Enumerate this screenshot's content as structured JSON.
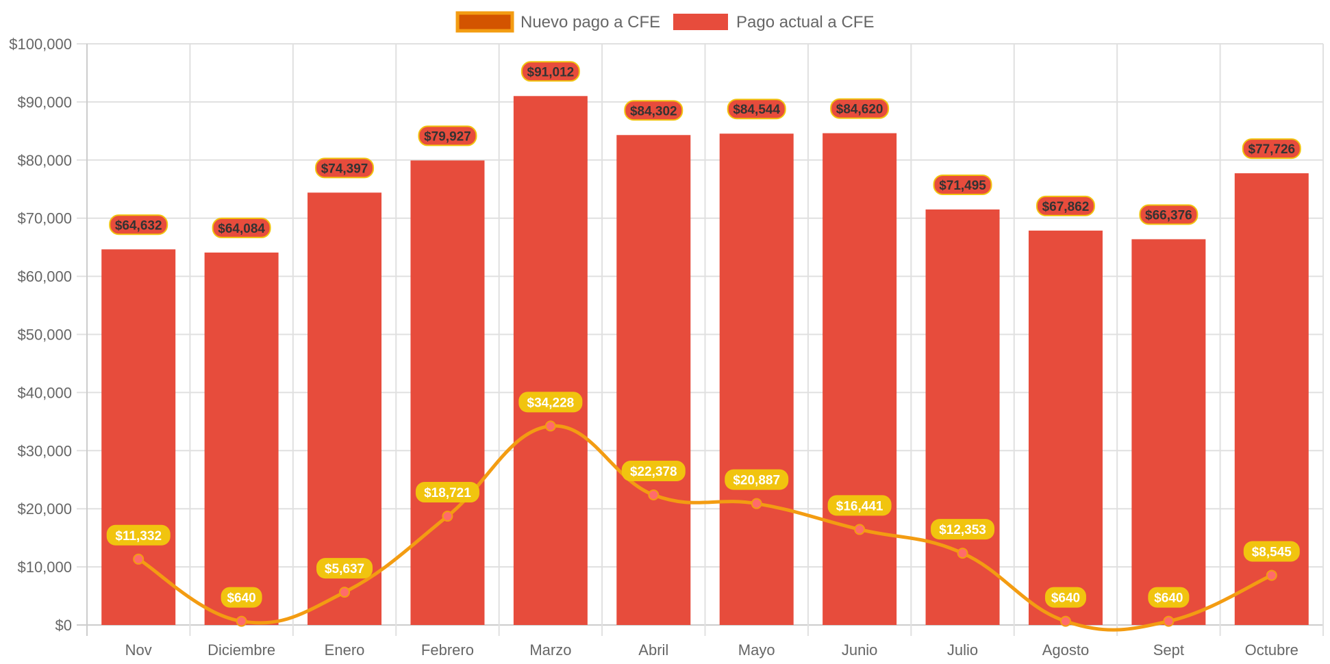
{
  "colors": {
    "bar_fill": "#e74c3c",
    "line_stroke": "#f39c12",
    "line_legend_fill": "#d35400",
    "point_fill": "#ff6b6b",
    "line_label_bg": "#f1c40f",
    "bar_label_border": "#f1c40f",
    "grid": "#e0e0e0",
    "axis": "#cccccc",
    "tick_text": "#666666"
  },
  "chart_data": {
    "type": "bar",
    "title": "",
    "xlabel": "",
    "ylabel": "",
    "categories": [
      "Nov",
      "Diciembre",
      "Enero",
      "Febrero",
      "Marzo",
      "Abril",
      "Mayo",
      "Junio",
      "Julio",
      "Agosto",
      "Sept",
      "Octubre"
    ],
    "ylim": [
      0,
      100000
    ],
    "y_ticks": [
      0,
      10000,
      20000,
      30000,
      40000,
      50000,
      60000,
      70000,
      80000,
      90000,
      100000
    ],
    "y_tick_labels": [
      "$0",
      "$10,000",
      "$20,000",
      "$30,000",
      "$40,000",
      "$50,000",
      "$60,000",
      "$70,000",
      "$80,000",
      "$90,000",
      "$100,000"
    ],
    "grid": true,
    "legend_position": "top-center",
    "series": [
      {
        "name": "Nuevo pago a CFE",
        "type": "line",
        "smooth": true,
        "values": [
          11332,
          640,
          5637,
          18721,
          34228,
          22378,
          20887,
          16441,
          12353,
          640,
          640,
          8545
        ],
        "labels": [
          "$11,332",
          "$640",
          "$5,637",
          "$18,721",
          "$34,228",
          "$22,378",
          "$20,887",
          "$16,441",
          "$12,353",
          "$640",
          "$640",
          "$8,545"
        ]
      },
      {
        "name": "Pago actual a CFE",
        "type": "bar",
        "values": [
          64632,
          64084,
          74397,
          79927,
          91012,
          84302,
          84544,
          84620,
          71495,
          67862,
          66376,
          77726
        ],
        "labels": [
          "$64,632",
          "$64,084",
          "$74,397",
          "$79,927",
          "$91,012",
          "$84,302",
          "$84,544",
          "$84,620",
          "$71,495",
          "$67,862",
          "$66,376",
          "$77,726"
        ]
      }
    ]
  }
}
